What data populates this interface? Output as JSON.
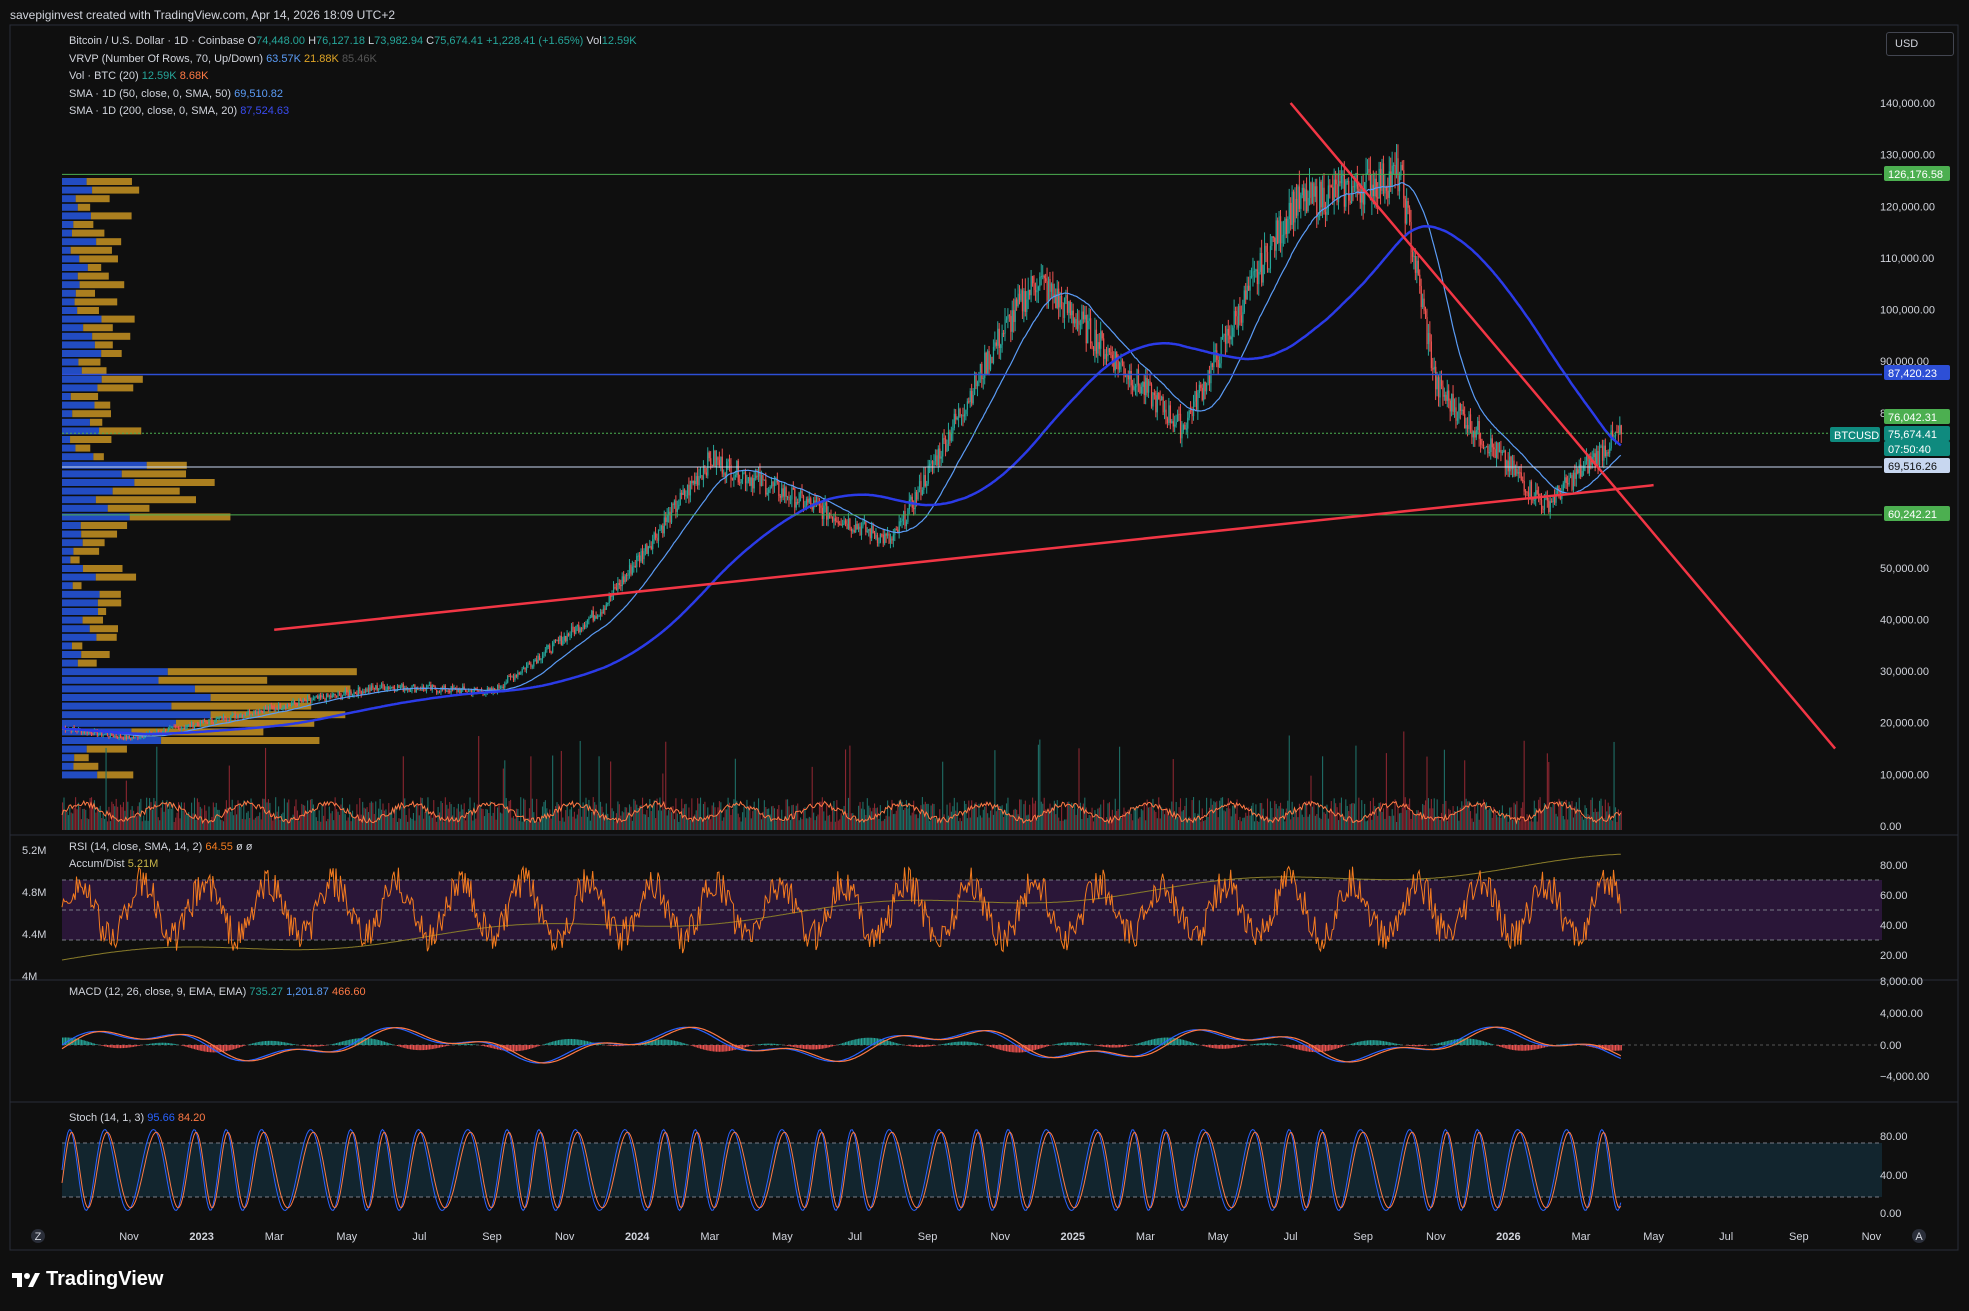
{
  "header": {
    "attribution": "savepiginvest created with TradingView.com, Apr 14, 2026 18:09 UTC+2"
  },
  "legend": {
    "symbol": "Bitcoin / U.S. Dollar · 1D · Coinbase",
    "open_label": "O",
    "open": "74,448.00",
    "high_label": "H",
    "high": "76,127.18",
    "low_label": "L",
    "low": "73,982.94",
    "close_label": "C",
    "close": "75,674.41",
    "change": "+1,228.41 (+1.65%)",
    "vol_label": "Vol",
    "vol": "12.59K",
    "vrvp": "VRVP (Number Of Rows, 70, Up/Down)",
    "vrvp_v1": "63.57K",
    "vrvp_v2": "21.88K",
    "vrvp_v3": "85.46K",
    "vol_ind": "Vol · BTC (20)",
    "vol_v1": "12.59K",
    "vol_v2": "8.68K",
    "sma50": "SMA · 1D (50, close, 0, SMA, 50)",
    "sma50_v": "69,510.82",
    "sma200": "SMA · 1D (200, close, 0, SMA, 20)",
    "sma200_v": "87,524.63"
  },
  "currency_button": "USD",
  "price_axis": {
    "ticks": [
      "140,000.00",
      "130,000.00",
      "120,000.00",
      "110,000.00",
      "100,000.00",
      "90,000.00",
      "80,000.00",
      "50,000.00",
      "40,000.00",
      "30,000.00",
      "20,000.00",
      "10,000.00",
      "0.00"
    ],
    "tags": [
      {
        "text": "126,176.58",
        "color": "#4caf50"
      },
      {
        "text": "87,420.23",
        "color": "#2d4fd6"
      },
      {
        "text": "76,042.31",
        "color": "#4caf50"
      },
      {
        "text": "BTCUSD",
        "color": "#0f8a7e"
      },
      {
        "text": "75,674.41",
        "color": "#0f8a7e"
      },
      {
        "text": "07:50:40",
        "color": "#0f8a7e"
      },
      {
        "text": "69,516.26",
        "color": "#c8d7f0"
      },
      {
        "text": "60,242.21",
        "color": "#4caf50"
      }
    ]
  },
  "rsi": {
    "label": "RSI (14, close, SMA, 14, 2)",
    "value": "64.55",
    "extra": "ø ø",
    "accum_label": "Accum/Dist",
    "accum_value": "5.21M",
    "ticks": [
      "80.00",
      "60.00",
      "40.00",
      "20.00"
    ],
    "left_ticks": [
      "5.2M",
      "4.8M",
      "4.4M",
      "4M"
    ]
  },
  "macd": {
    "label": "MACD (12, 26, close, 9, EMA, EMA)",
    "v1": "735.27",
    "v2": "1,201.87",
    "v3": "466.60",
    "ticks": [
      "8,000.00",
      "4,000.00",
      "0.00",
      "−4,000.00"
    ]
  },
  "stoch": {
    "label": "Stoch (14, 1, 3)",
    "v1": "95.66",
    "v2": "84.20",
    "ticks": [
      "80.00",
      "40.00",
      "0.00"
    ]
  },
  "time_axis": [
    "Nov",
    "2023",
    "Mar",
    "May",
    "Jul",
    "Sep",
    "Nov",
    "2024",
    "Mar",
    "May",
    "Jul",
    "Sep",
    "Nov",
    "2025",
    "Mar",
    "May",
    "Jul",
    "Sep",
    "Nov",
    "2026",
    "Mar",
    "May",
    "Jul",
    "Sep",
    "Nov"
  ],
  "brand": "TradingView",
  "colors": {
    "background": "#0f0f0f",
    "trendline": "#f23645",
    "sma50": "#5b9cf6",
    "sma200": "#2b3be8",
    "level_green": "#4caf50",
    "level_blue": "#2d4fd6",
    "rsi": "#f57c1f",
    "rsi_band": "#2a1638",
    "vp_up": "#2962ff",
    "vp_down": "#e0a526"
  },
  "chart_data": {
    "type": "candlestick",
    "symbol": "BTCUSD",
    "price_anchor_points": [
      {
        "date": "2022-11",
        "price": 17000
      },
      {
        "date": "2023-03",
        "price": 23000
      },
      {
        "date": "2023-06",
        "price": 27000
      },
      {
        "date": "2023-09",
        "price": 26000
      },
      {
        "date": "2023-12",
        "price": 42000
      },
      {
        "date": "2024-03",
        "price": 71000
      },
      {
        "date": "2024-08",
        "price": 55000
      },
      {
        "date": "2024-11",
        "price": 95000
      },
      {
        "date": "2024-12",
        "price": 106000
      },
      {
        "date": "2025-04",
        "price": 77000
      },
      {
        "date": "2025-07",
        "price": 120000
      },
      {
        "date": "2025-10",
        "price": 126000
      },
      {
        "date": "2025-11",
        "price": 85000
      },
      {
        "date": "2026-02",
        "price": 62000
      },
      {
        "date": "2026-04",
        "price": 75674
      }
    ],
    "horizontal_levels": [
      126176.58,
      87420.23,
      76042.31,
      69516.26,
      60242.21
    ],
    "trendlines": [
      {
        "from": {
          "date": "2023-03",
          "price": 38000
        },
        "to": {
          "date": "2026-05",
          "price": 66000
        }
      },
      {
        "from": {
          "date": "2025-07",
          "price": 140000
        },
        "to": {
          "date": "2026-10",
          "price": 15000
        }
      }
    ],
    "ylim": [
      0,
      145000
    ]
  }
}
